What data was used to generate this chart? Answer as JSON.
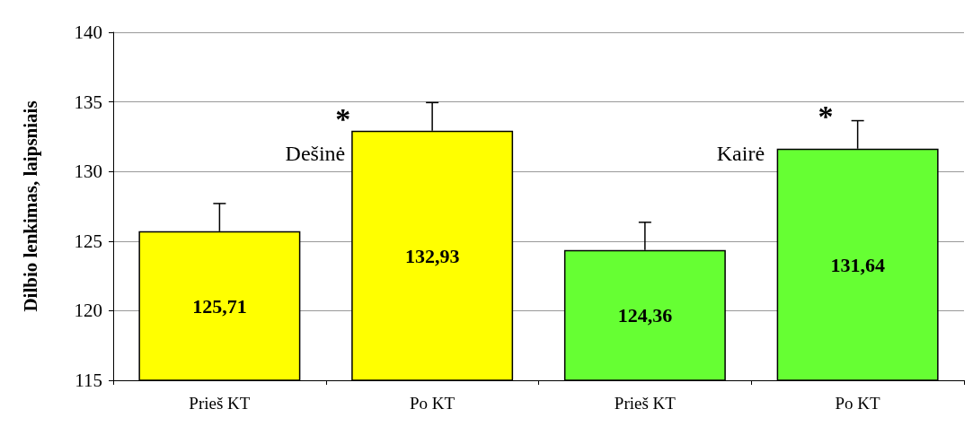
{
  "chart_data": {
    "type": "bar",
    "ylabel": "Dilbio lenkimas, laipsniais",
    "categories": [
      "Prieš KT",
      "Po KT",
      "Prieš KT",
      "Po KT"
    ],
    "values": [
      125.71,
      132.93,
      124.36,
      131.64
    ],
    "colors": [
      "#ffff00",
      "#ffff00",
      "#66ff33",
      "#66ff33"
    ],
    "value_labels": [
      "125,71",
      "132,93",
      "124,36",
      "131,64"
    ],
    "errors": [
      [
        125.71,
        127.7
      ],
      [
        132.93,
        134.95
      ],
      [
        124.36,
        126.35
      ],
      [
        131.64,
        133.65
      ]
    ],
    "ylim": [
      115,
      140
    ],
    "yticks": [
      115,
      120,
      125,
      130,
      135,
      140
    ],
    "grid": "y",
    "annotations": [
      "Dešinė",
      "*",
      "Kairė",
      "*"
    ]
  }
}
